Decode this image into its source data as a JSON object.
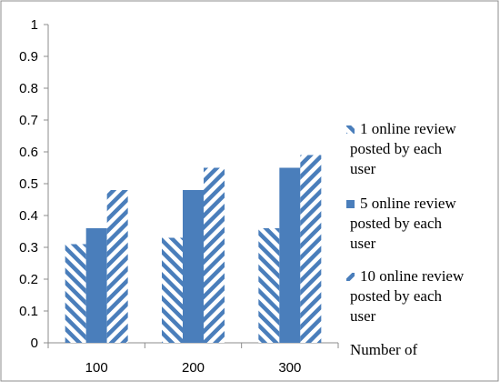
{
  "chart_data": {
    "type": "bar",
    "title": "",
    "xlabel": "",
    "ylabel": "",
    "categories": [
      "100",
      "200",
      "300"
    ],
    "y_ticks": [
      "0",
      "0.1",
      "0.2",
      "0.3",
      "0.4",
      "0.5",
      "0.6",
      "0.7",
      "0.8",
      "0.9",
      "1"
    ],
    "ylim": [
      0,
      1
    ],
    "grid": false,
    "legend_position": "right",
    "axis_note": "Number of",
    "series": [
      {
        "name": "1 online review posted by each user",
        "legend_lines": [
          "1 online review",
          "posted by each",
          "user"
        ],
        "values": [
          0.31,
          0.33,
          0.36
        ],
        "pattern": "back-diagonal-stripes",
        "color": "#4a7ebb"
      },
      {
        "name": "5 online review posted by each user",
        "legend_lines": [
          "5 online review",
          "posted by each",
          "user"
        ],
        "values": [
          0.36,
          0.48,
          0.55
        ],
        "pattern": "solid",
        "color": "#4a7ebb"
      },
      {
        "name": "10 online review posted by each user",
        "legend_lines": [
          "10 online review",
          "posted by each",
          "user"
        ],
        "values": [
          0.48,
          0.55,
          0.59
        ],
        "pattern": "forward-diagonal-stripes",
        "color": "#4a7ebb"
      }
    ]
  }
}
